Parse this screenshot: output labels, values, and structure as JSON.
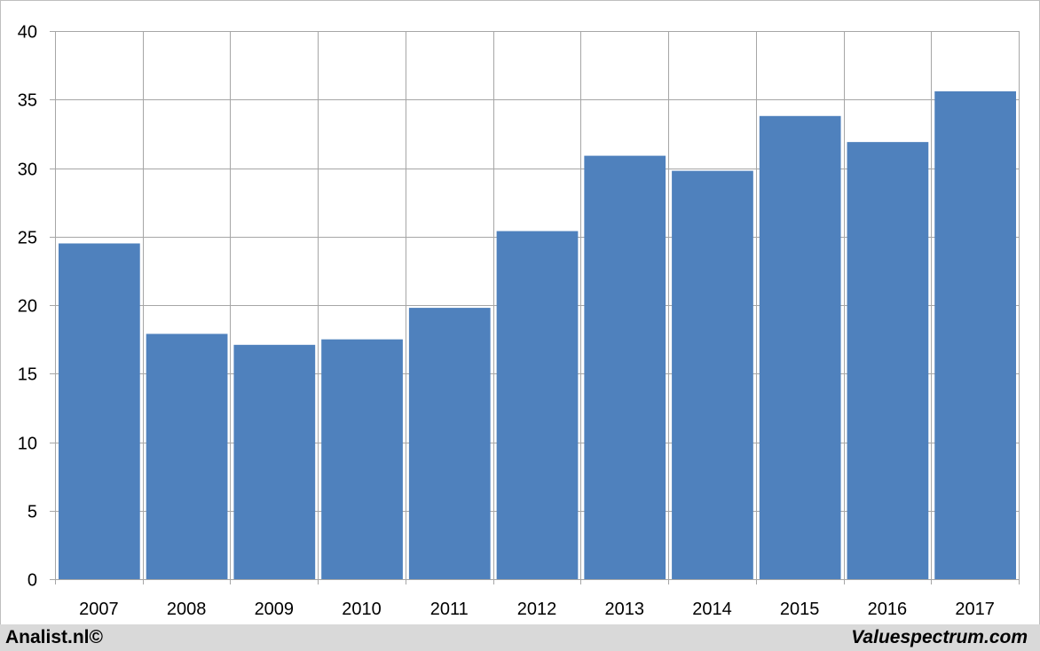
{
  "chart_data": {
    "type": "bar",
    "title": "",
    "xlabel": "",
    "ylabel": "",
    "categories": [
      "2007",
      "2008",
      "2009",
      "2010",
      "2011",
      "2012",
      "2013",
      "2014",
      "2015",
      "2016",
      "2017"
    ],
    "values": [
      24.5,
      17.9,
      17.1,
      17.5,
      19.8,
      25.4,
      30.9,
      29.8,
      33.8,
      31.9,
      35.6
    ],
    "ylim": [
      0,
      40
    ],
    "yticks": [
      "0",
      "5",
      "10",
      "15",
      "20",
      "25",
      "30",
      "35",
      "40"
    ],
    "grid": true,
    "legend": "none",
    "bar_color": "#4f81bd",
    "grid_color": "#a6a6a6"
  },
  "footer": {
    "left": "Analist.nl©",
    "right": "Valuespectrum.com"
  }
}
